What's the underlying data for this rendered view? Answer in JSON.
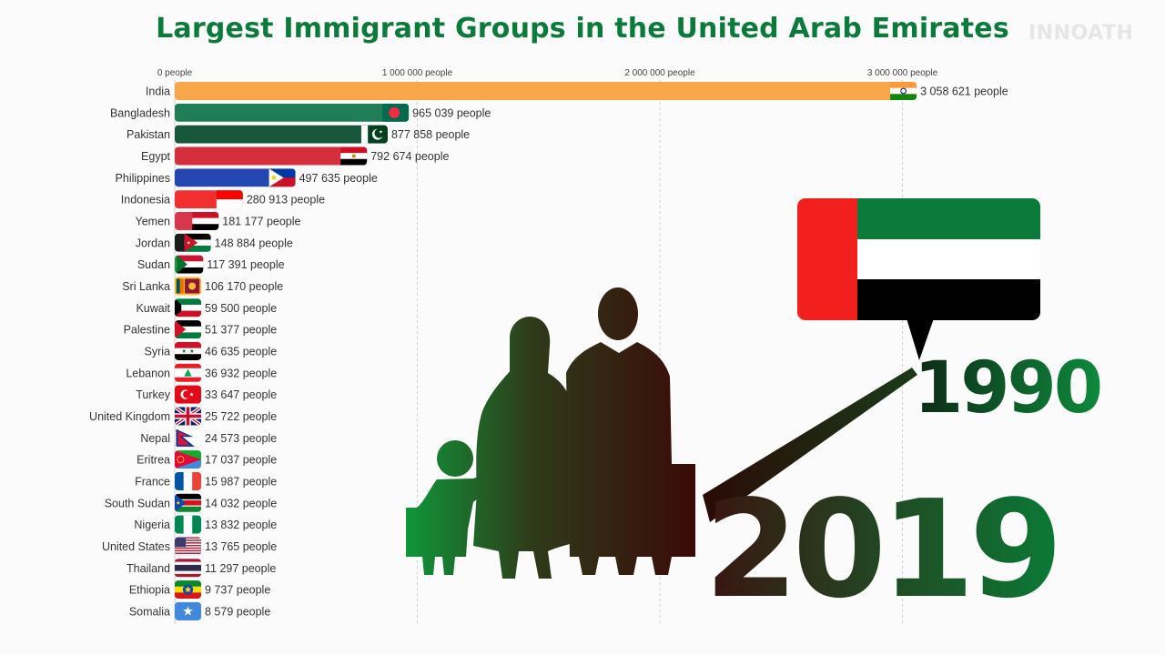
{
  "title": "Largest Immigrant Groups in the United Arab Emirates",
  "watermark": "INNOATH",
  "year_start": "1990",
  "year_current": "2019",
  "colors": {
    "title": "#0b7a3a",
    "uae_red": "#f21f1f",
    "uae_green": "#0b7a3a",
    "uae_black": "#000000"
  },
  "chart_data": {
    "type": "bar",
    "orientation": "horizontal",
    "title": "Largest Immigrant Groups in the United Arab Emirates",
    "xlim": [
      0,
      3300000
    ],
    "grid": true,
    "x_ticks": [
      {
        "value": 0,
        "label": "0 people"
      },
      {
        "value": 1000000,
        "label": "1 000 000 people"
      },
      {
        "value": 2000000,
        "label": "2 000 000 people"
      },
      {
        "value": 3000000,
        "label": "3 000 000 people"
      }
    ],
    "bars": [
      {
        "category": "India",
        "value": 3058621,
        "label": "3 058 621 people",
        "color": "#f8a64a",
        "flag": "india-flag"
      },
      {
        "category": "Bangladesh",
        "value": 965039,
        "label": "965 039 people",
        "color": "#1f7d57",
        "flag": "bangladesh-flag"
      },
      {
        "category": "Pakistan",
        "value": 877858,
        "label": "877 858 people",
        "color": "#17573a",
        "flag": "pakistan-flag"
      },
      {
        "category": "Egypt",
        "value": 792674,
        "label": "792 674 people",
        "color": "#d52e3d",
        "flag": "egypt-flag"
      },
      {
        "category": "Philippines",
        "value": 497635,
        "label": "497 635 people",
        "color": "#2446b0",
        "flag": "philippines-flag"
      },
      {
        "category": "Indonesia",
        "value": 280913,
        "label": "280 913 people",
        "color": "#f22f2f",
        "flag": "indonesia-flag"
      },
      {
        "category": "Yemen",
        "value": 181177,
        "label": "181 177 people",
        "color": "#d8364a",
        "flag": "yemen-flag"
      },
      {
        "category": "Jordan",
        "value": 148884,
        "label": "148 884 people",
        "color": "#1c1c1c",
        "flag": "jordan-flag"
      },
      {
        "category": "Sudan",
        "value": 117391,
        "label": "117 391 people",
        "color": "#23923e",
        "flag": "sudan-flag"
      },
      {
        "category": "Sri Lanka",
        "value": 106170,
        "label": "106 170 people",
        "color": "#f6b92f",
        "flag": "sri-lanka-flag"
      },
      {
        "category": "Kuwait",
        "value": 59500,
        "label": "59 500 people",
        "color": "#169246",
        "flag": "kuwait-flag"
      },
      {
        "category": "Palestine",
        "value": 51377,
        "label": "51 377 people",
        "color": "#1c1c1c",
        "flag": "palestine-flag"
      },
      {
        "category": "Syria",
        "value": 46635,
        "label": "46 635 people",
        "color": "#d63040",
        "flag": "syria-flag"
      },
      {
        "category": "Lebanon",
        "value": 36932,
        "label": "36 932 people",
        "color": "#ea2a34",
        "flag": "lebanon-flag"
      },
      {
        "category": "Turkey",
        "value": 33647,
        "label": "33 647 people",
        "color": "#e31c23",
        "flag": "turkey-flag"
      },
      {
        "category": "United Kingdom",
        "value": 25722,
        "label": "25 722 people",
        "color": "#1d3c8a",
        "flag": "united-kingdom-flag"
      },
      {
        "category": "Nepal",
        "value": 24573,
        "label": "24 573 people",
        "color": "#c8102e",
        "flag": "nepal-flag"
      },
      {
        "category": "Eritrea",
        "value": 17037,
        "label": "17 037 people",
        "color": "#3e9a3f",
        "flag": "eritrea-flag"
      },
      {
        "category": "France",
        "value": 15987,
        "label": "15 987 people",
        "color": "#1f3f9e",
        "flag": "france-flag"
      },
      {
        "category": "South Sudan",
        "value": 14032,
        "label": "14 032 people",
        "color": "#1a1a1a",
        "flag": "south-sudan-flag"
      },
      {
        "category": "Nigeria",
        "value": 13832,
        "label": "13 832 people",
        "color": "#14914c",
        "flag": "nigeria-flag"
      },
      {
        "category": "United States",
        "value": 13765,
        "label": "13 765 people",
        "color": "#2b3b7a",
        "flag": "united-states-flag"
      },
      {
        "category": "Thailand",
        "value": 11297,
        "label": "11 297 people",
        "color": "#2d2a6a",
        "flag": "thailand-flag"
      },
      {
        "category": "Ethiopia",
        "value": 9737,
        "label": "9 737 people",
        "color": "#2c9a3c",
        "flag": "ethiopia-flag"
      },
      {
        "category": "Somalia",
        "value": 8579,
        "label": "8 579 people",
        "color": "#4189dd",
        "flag": "somalia-flag"
      }
    ]
  }
}
